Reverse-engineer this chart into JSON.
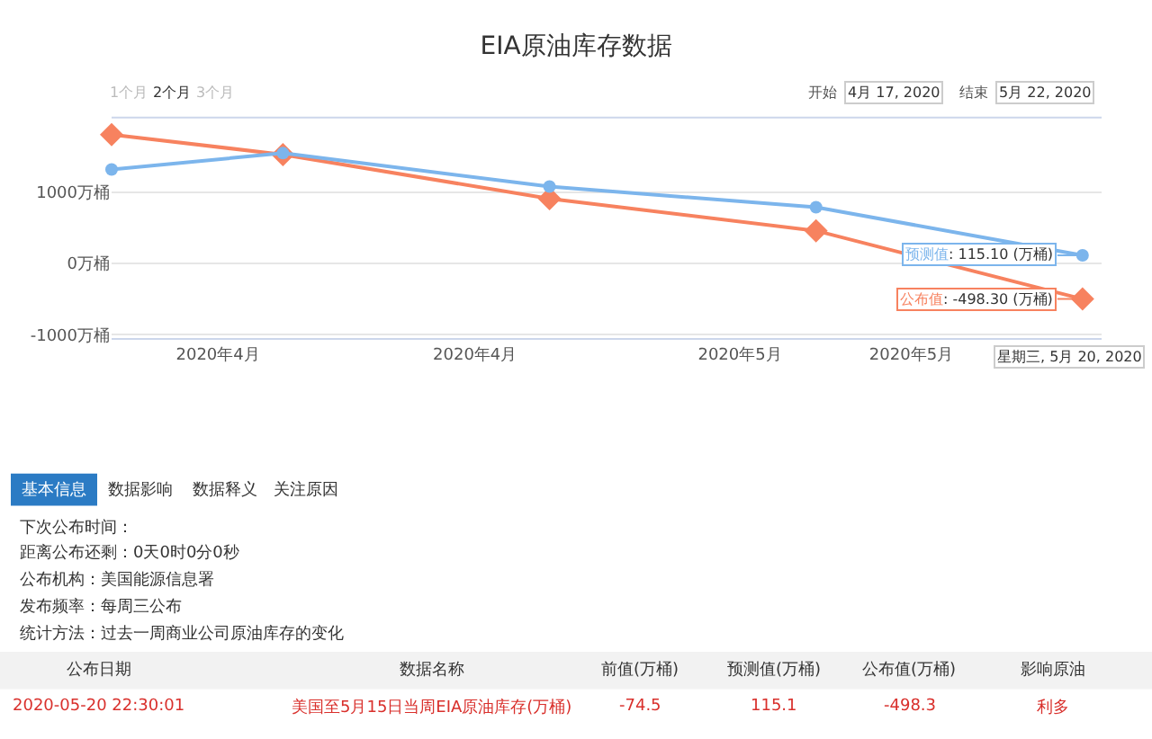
{
  "chart_data": {
    "type": "line",
    "title": "EIA原油库存数据",
    "x": [
      "2020-04-24T12:00",
      "2020-04-29",
      "2020-05-06",
      "2020-05-13",
      "2020-05-20"
    ],
    "series": [
      {
        "name": "预测值",
        "color": "#7cb5ec",
        "values": [
          1320,
          1550,
          1080,
          790,
          115.1
        ],
        "marker": "circle"
      },
      {
        "name": "公布值",
        "color": "#f7825f",
        "values": [
          1810,
          1530,
          910,
          460,
          -498.3
        ],
        "marker": "diamond"
      }
    ],
    "xlim": [
      "2020-04-24T12:00",
      "2020-05-20T12:00"
    ],
    "xticks": [
      {
        "value": "2020-04-27T07:00",
        "label": "2020年4月"
      },
      {
        "value": "2020-05-04T01:00",
        "label": "2020年4月"
      },
      {
        "value": "2020-05-11T00:00",
        "label": "2020年5月"
      },
      {
        "value": "2020-05-15T12:00",
        "label": "2020年5月"
      }
    ],
    "ylim": [
      -1050,
      2050
    ],
    "yticks": [
      {
        "value": -1000,
        "label": "-1000万桶"
      },
      {
        "value": 0,
        "label": "0万桶"
      },
      {
        "value": 1000,
        "label": "1000万桶"
      }
    ],
    "grid": "y",
    "legend": false,
    "line_style": "solid",
    "annotations": [
      {
        "text": ": 115.10 (万桶)",
        "x": "2020-05-20",
        "y": 115.1
      },
      {
        "text": ": -498.30 (万桶)",
        "x": "2020-05-20",
        "y": -498.3
      },
      "星期三, 5月 20, 2020",
      "1个月",
      "2个月",
      "3个月",
      "开始",
      "4月 17, 2020",
      "结束",
      "5月 22, 2020",
      "基本信息",
      "数据影响",
      "数据释义",
      "关注原因",
      "下次公布时间：",
      "距离公布还剩：0天0时0分0秒",
      "公布机构：美国能源信息署",
      "发布频率：每周三公布",
      "统计方法：过去一周商业公司原油库存的变化",
      "公布日期",
      "数据名称",
      "前值(万桶)",
      "预测值(万桶)",
      "公布值(万桶)",
      "影响原油",
      "2020-05-20 22:30:01",
      "美国至5月15日当周EIA原油库存(万桶)",
      "-74.5",
      "115.1",
      "-498.3",
      "利多"
    ]
  }
}
